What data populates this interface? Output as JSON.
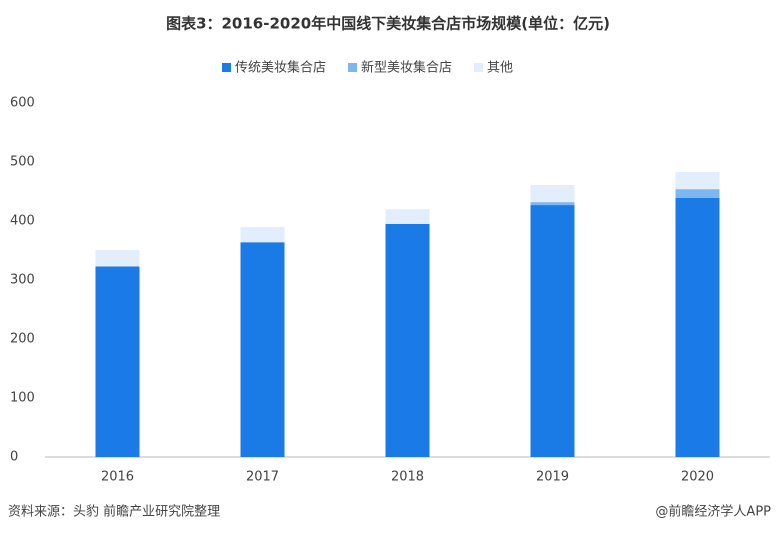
{
  "chart_data": {
    "type": "stacked-bar",
    "title": "图表3：2016-2020年中国线下美妆集合店市场规模(单位：亿元)",
    "categories": [
      "2016",
      "2017",
      "2018",
      "2019",
      "2020"
    ],
    "series": [
      {
        "name": "传统美妆集合店",
        "color": "#1a7be6",
        "values": [
          323,
          364,
          395,
          427,
          439
        ]
      },
      {
        "name": "新型美妆集合店",
        "color": "#7db7f0",
        "values": [
          0,
          0,
          0,
          5,
          15
        ]
      },
      {
        "name": "其他",
        "color": "#e2eefb",
        "values": [
          28,
          26,
          25,
          29,
          29
        ]
      }
    ],
    "ylim": [
      0,
      600
    ],
    "yticks": [
      0,
      100,
      200,
      300,
      400,
      500,
      600
    ],
    "grid": false,
    "legend": "top",
    "source": "资料来源：头豹 前瞻产业研究院整理",
    "credit": "@前瞻经济学人APP"
  }
}
